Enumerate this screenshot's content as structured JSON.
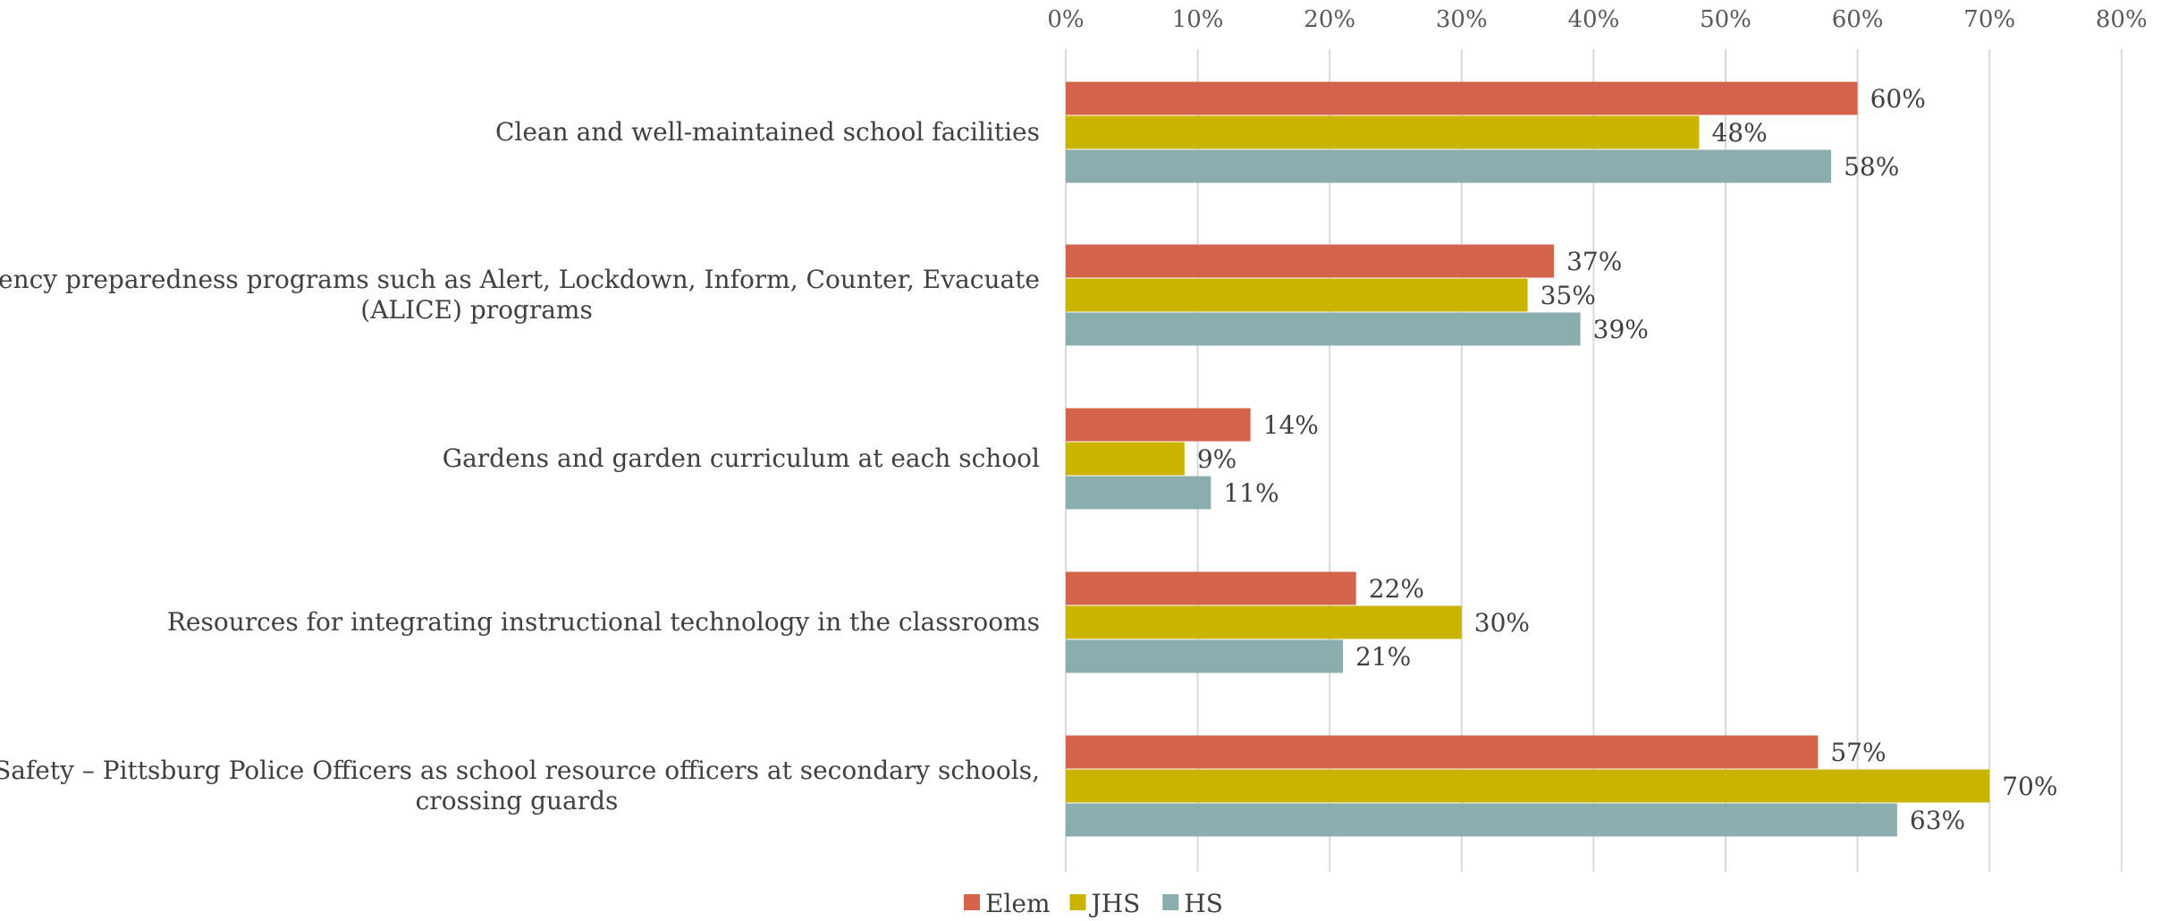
{
  "chart_data": {
    "type": "bar",
    "orientation": "horizontal",
    "title": "",
    "xlabel": "",
    "ylabel": "",
    "xlim": [
      0,
      80
    ],
    "ticks": [
      0,
      10,
      20,
      30,
      40,
      50,
      60,
      70,
      80
    ],
    "tick_labels": [
      "0%",
      "10%",
      "20%",
      "30%",
      "40%",
      "50%",
      "60%",
      "70%",
      "80%"
    ],
    "axis_position": "top",
    "grid": true,
    "legend_position": "bottom",
    "categories": [
      [
        "Clean and well-maintained school facilities"
      ],
      [
        "Emergency preparedness programs such as Alert, Lockdown, Inform, Counter, Evacuate",
        "(ALICE) programs"
      ],
      [
        "Gardens and garden curriculum at each school"
      ],
      [
        "Resources for integrating instructional technology in the classrooms"
      ],
      [
        "Safety – Pittsburg Police Officers as school resource officers at secondary schools,",
        "crossing guards"
      ]
    ],
    "series": [
      {
        "name": "Elem",
        "color": "#d3634a",
        "values": [
          60,
          37,
          14,
          22,
          57
        ],
        "labels": [
          "60%",
          "37%",
          "14%",
          "22%",
          "57%"
        ]
      },
      {
        "name": "JHS",
        "color": "#cbb400",
        "values": [
          48,
          35,
          9,
          30,
          70
        ],
        "labels": [
          "48%",
          "35%",
          "9%",
          "30%",
          "70%"
        ]
      },
      {
        "name": "HS",
        "color": "#8cadad",
        "values": [
          58,
          39,
          11,
          21,
          63
        ],
        "labels": [
          "58%",
          "39%",
          "11%",
          "21%",
          "63%"
        ]
      }
    ]
  }
}
